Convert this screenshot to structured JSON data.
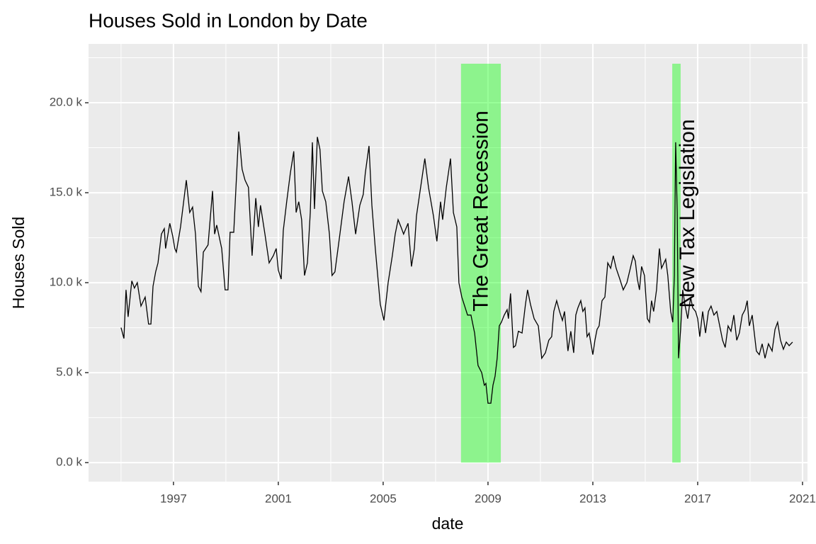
{
  "chart_data": {
    "type": "line",
    "title": "Houses Sold in London by Date",
    "x_label": "date",
    "y_label": "Houses Sold",
    "x": [
      1995.0,
      1995.11,
      1995.19,
      1995.27,
      1995.41,
      1995.51,
      1995.62,
      1995.76,
      1995.92,
      1996.05,
      1996.14,
      1996.22,
      1996.32,
      1996.41,
      1996.54,
      1996.65,
      1996.7,
      1996.86,
      1996.97,
      1997.05,
      1997.11,
      1997.27,
      1997.49,
      1997.62,
      1997.73,
      1997.84,
      1997.95,
      1998.05,
      1998.14,
      1998.32,
      1998.49,
      1998.57,
      1998.65,
      1998.84,
      1998.97,
      1999.08,
      1999.16,
      1999.3,
      1999.49,
      1999.62,
      1999.73,
      1999.86,
      2000.0,
      2000.14,
      2000.24,
      2000.32,
      2000.49,
      2000.65,
      2000.81,
      2000.92,
      2001.0,
      2001.11,
      2001.19,
      2001.32,
      2001.46,
      2001.59,
      2001.68,
      2001.78,
      2001.89,
      2002.0,
      2002.11,
      2002.22,
      2002.3,
      2002.38,
      2002.49,
      2002.59,
      2002.68,
      2002.81,
      2002.95,
      2003.05,
      2003.16,
      2003.35,
      2003.51,
      2003.68,
      2003.81,
      2003.95,
      2004.11,
      2004.24,
      2004.32,
      2004.46,
      2004.57,
      2004.7,
      2004.89,
      2005.03,
      2005.19,
      2005.35,
      2005.46,
      2005.57,
      2005.68,
      2005.78,
      2005.95,
      2006.08,
      2006.19,
      2006.27,
      2006.41,
      2006.51,
      2006.59,
      2006.73,
      2006.92,
      2007.05,
      2007.19,
      2007.27,
      2007.41,
      2007.57,
      2007.68,
      2007.81,
      2007.89,
      2008.0,
      2008.11,
      2008.22,
      2008.35,
      2008.49,
      2008.62,
      2008.76,
      2008.86,
      2008.92,
      2009.0,
      2009.11,
      2009.19,
      2009.27,
      2009.35,
      2009.43,
      2009.51,
      2009.62,
      2009.73,
      2009.78,
      2009.86,
      2009.97,
      2010.05,
      2010.16,
      2010.3,
      2010.43,
      2010.51,
      2010.62,
      2010.76,
      2010.92,
      2011.05,
      2011.19,
      2011.32,
      2011.43,
      2011.51,
      2011.62,
      2011.73,
      2011.84,
      2011.92,
      2012.05,
      2012.16,
      2012.27,
      2012.35,
      2012.43,
      2012.54,
      2012.62,
      2012.7,
      2012.78,
      2012.86,
      2013.0,
      2013.08,
      2013.16,
      2013.24,
      2013.35,
      2013.46,
      2013.57,
      2013.68,
      2013.78,
      2013.89,
      2014.03,
      2014.16,
      2014.3,
      2014.43,
      2014.54,
      2014.62,
      2014.7,
      2014.78,
      2014.86,
      2014.97,
      2015.08,
      2015.16,
      2015.24,
      2015.32,
      2015.43,
      2015.54,
      2015.62,
      2015.78,
      2015.86,
      2015.97,
      2016.05,
      2016.11,
      2016.16,
      2016.22,
      2016.27,
      2016.35,
      2016.43,
      2016.51,
      2016.62,
      2016.73,
      2016.81,
      2016.92,
      2017.0,
      2017.08,
      2017.19,
      2017.3,
      2017.41,
      2017.51,
      2017.62,
      2017.73,
      2017.84,
      2017.95,
      2018.05,
      2018.16,
      2018.27,
      2018.38,
      2018.49,
      2018.59,
      2018.7,
      2018.81,
      2018.89,
      2018.97,
      2019.08,
      2019.16,
      2019.24,
      2019.35,
      2019.46,
      2019.57,
      2019.7,
      2019.84,
      2019.95,
      2020.05,
      2020.16,
      2020.27,
      2020.38,
      2020.49,
      2020.62
    ],
    "series": [
      {
        "color": "#000000",
        "values": [
          7500,
          6900,
          9600,
          8100,
          10100,
          9700,
          10000,
          8700,
          9200,
          7700,
          7700,
          9800,
          10600,
          11100,
          12700,
          13000,
          11900,
          13300,
          12600,
          11900,
          11700,
          13100,
          15700,
          13900,
          14200,
          12700,
          9800,
          9500,
          11700,
          12100,
          15100,
          12700,
          13200,
          11900,
          9600,
          9600,
          12800,
          12800,
          18400,
          16300,
          15700,
          15300,
          11500,
          14700,
          13100,
          14300,
          12700,
          11100,
          11500,
          11900,
          10700,
          10200,
          12900,
          14500,
          16100,
          17300,
          13900,
          14500,
          13500,
          10400,
          11100,
          13900,
          17800,
          14100,
          18100,
          17400,
          15100,
          14500,
          12700,
          10400,
          10600,
          12700,
          14500,
          15900,
          14500,
          12700,
          14300,
          14900,
          16100,
          17600,
          14300,
          11900,
          8800,
          7900,
          10000,
          11500,
          12700,
          13500,
          13100,
          12700,
          13300,
          10900,
          11900,
          13700,
          15100,
          16100,
          16900,
          15300,
          13700,
          12300,
          14500,
          13500,
          15300,
          16900,
          13900,
          13100,
          10000,
          9200,
          8700,
          8200,
          8200,
          7200,
          5400,
          5000,
          4300,
          4400,
          3300,
          3300,
          4300,
          4800,
          5800,
          7600,
          7800,
          8200,
          8500,
          8000,
          9400,
          6400,
          6500,
          7300,
          7200,
          8800,
          9600,
          8800,
          8000,
          7600,
          5800,
          6100,
          6800,
          7000,
          8400,
          9000,
          8400,
          7900,
          8400,
          6200,
          7300,
          6100,
          8200,
          8600,
          9000,
          8400,
          8600,
          7000,
          7200,
          6000,
          6800,
          7400,
          7600,
          9000,
          9200,
          11100,
          10800,
          11500,
          10800,
          10200,
          9600,
          10000,
          10800,
          11500,
          11200,
          10200,
          9600,
          10900,
          10400,
          8000,
          7800,
          9000,
          8400,
          9600,
          11900,
          10800,
          11300,
          10400,
          8400,
          7800,
          10400,
          17800,
          13900,
          5800,
          7400,
          9600,
          8800,
          8000,
          9200,
          8600,
          8400,
          8000,
          7000,
          8400,
          7200,
          8400,
          8700,
          8200,
          8400,
          7600,
          6800,
          6400,
          7600,
          7300,
          8200,
          6800,
          7200,
          8200,
          8500,
          9000,
          7600,
          8200,
          7200,
          6200,
          6000,
          6600,
          5800,
          6600,
          6200,
          7400,
          7800,
          6800,
          6300,
          6700,
          6500,
          6700
        ]
      }
    ],
    "xlim": [
      1993.76,
      2021.19
    ],
    "ylim": [
      -1060,
      23270
    ],
    "xticks": [
      1997,
      2001,
      2005,
      2009,
      2013,
      2017,
      2021
    ],
    "yticks": [
      {
        "value": 0,
        "label": "0.0 k"
      },
      {
        "value": 5000,
        "label": "5.0 k"
      },
      {
        "value": 10000,
        "label": "10.0 k"
      },
      {
        "value": 15000,
        "label": "15.0 k"
      },
      {
        "value": 20000,
        "label": "20.0 k"
      }
    ],
    "minor_xticks": [
      1995,
      1999,
      2003,
      2007,
      2011,
      2015,
      2019
    ],
    "minor_yticks": [
      2500,
      7500,
      12500,
      17500,
      22500
    ],
    "grid": true,
    "annotations": [
      {
        "label": "The Great Recession",
        "xmin": 2007.97,
        "xmax": 2009.49,
        "ymin": 0,
        "ymax": 22170,
        "text_x": 2008.78,
        "text_y": 8400,
        "color": "#00ff00"
      },
      {
        "label": "New Tax Legislation",
        "xmin": 2016.03,
        "xmax": 2016.35,
        "ymin": 0,
        "ymax": 22170,
        "text_x": 2016.65,
        "text_y": 8600,
        "color": "#00ff00"
      }
    ]
  }
}
